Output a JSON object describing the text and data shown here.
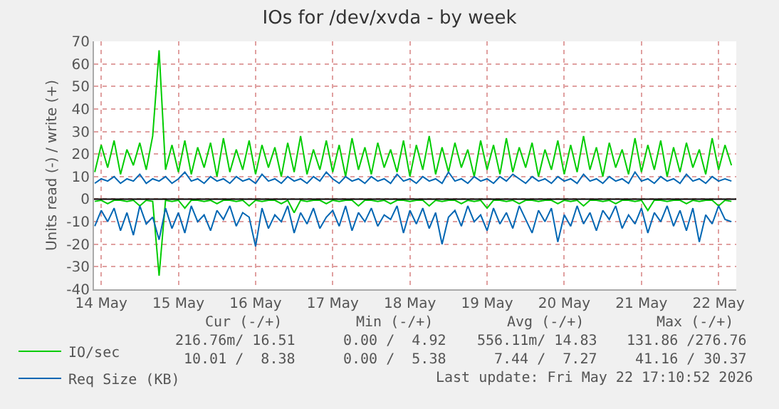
{
  "chart_data": {
    "type": "line",
    "title": "IOs for /dev/xvda - by week",
    "ylabel": "Units read (-) / write (+)",
    "x": [
      "2026-05-14T10:00",
      "2026-05-14T12:00",
      "2026-05-14T14:00",
      "2026-05-14T16:00",
      "2026-05-14T18:00",
      "2026-05-14T20:00",
      "2026-05-14T22:00",
      "2026-05-15T00:00",
      "2026-05-15T02:00",
      "2026-05-15T04:00",
      "2026-05-15T06:00",
      "2026-05-15T08:00",
      "2026-05-15T10:00",
      "2026-05-15T12:00",
      "2026-05-15T14:00",
      "2026-05-15T16:00",
      "2026-05-15T18:00",
      "2026-05-15T20:00",
      "2026-05-15T22:00",
      "2026-05-16T00:00",
      "2026-05-16T02:00",
      "2026-05-16T04:00",
      "2026-05-16T06:00",
      "2026-05-16T08:00",
      "2026-05-16T10:00",
      "2026-05-16T12:00",
      "2026-05-16T14:00",
      "2026-05-16T16:00",
      "2026-05-16T18:00",
      "2026-05-16T20:00",
      "2026-05-16T22:00",
      "2026-05-17T00:00",
      "2026-05-17T02:00",
      "2026-05-17T04:00",
      "2026-05-17T06:00",
      "2026-05-17T08:00",
      "2026-05-17T10:00",
      "2026-05-17T12:00",
      "2026-05-17T14:00",
      "2026-05-17T16:00",
      "2026-05-17T18:00",
      "2026-05-17T20:00",
      "2026-05-17T22:00",
      "2026-05-18T00:00",
      "2026-05-18T02:00",
      "2026-05-18T04:00",
      "2026-05-18T06:00",
      "2026-05-18T08:00",
      "2026-05-18T10:00",
      "2026-05-18T12:00",
      "2026-05-18T14:00",
      "2026-05-18T16:00",
      "2026-05-18T18:00",
      "2026-05-18T20:00",
      "2026-05-18T22:00",
      "2026-05-19T00:00",
      "2026-05-19T02:00",
      "2026-05-19T04:00",
      "2026-05-19T06:00",
      "2026-05-19T08:00",
      "2026-05-19T10:00",
      "2026-05-19T12:00",
      "2026-05-19T14:00",
      "2026-05-19T16:00",
      "2026-05-19T18:00",
      "2026-05-19T20:00",
      "2026-05-19T22:00",
      "2026-05-20T00:00",
      "2026-05-20T02:00",
      "2026-05-20T04:00",
      "2026-05-20T06:00",
      "2026-05-20T08:00",
      "2026-05-20T10:00",
      "2026-05-20T12:00",
      "2026-05-20T14:00",
      "2026-05-20T16:00",
      "2026-05-20T18:00",
      "2026-05-20T20:00",
      "2026-05-20T22:00",
      "2026-05-21T00:00",
      "2026-05-21T02:00",
      "2026-05-21T04:00",
      "2026-05-21T06:00",
      "2026-05-21T08:00",
      "2026-05-21T10:00",
      "2026-05-21T12:00",
      "2026-05-21T14:00",
      "2026-05-21T16:00",
      "2026-05-21T18:00",
      "2026-05-21T20:00",
      "2026-05-21T22:00",
      "2026-05-22T00:00",
      "2026-05-22T02:00",
      "2026-05-22T04:00",
      "2026-05-22T06:00",
      "2026-05-22T08:00",
      "2026-05-22T10:00",
      "2026-05-22T12:00",
      "2026-05-22T14:00",
      "2026-05-22T16:00"
    ],
    "series": [
      {
        "name": "IO/sec",
        "color": "#00cc00",
        "values": [
          12,
          24,
          14,
          26,
          11,
          22,
          15,
          25,
          13,
          28,
          66,
          13,
          24,
          12,
          26,
          11,
          23,
          14,
          25,
          10,
          27,
          12,
          22,
          13,
          26,
          11,
          24,
          14,
          23,
          10,
          25,
          12,
          28,
          11,
          22,
          13,
          26,
          12,
          24,
          10,
          27,
          13,
          23,
          11,
          25,
          14,
          22,
          12,
          26,
          10,
          24,
          13,
          28,
          11,
          23,
          12,
          25,
          14,
          22,
          10,
          26,
          13,
          24,
          11,
          27,
          12,
          23,
          14,
          25,
          10,
          22,
          13,
          26,
          11,
          24,
          12,
          28,
          13,
          23,
          10,
          25,
          14,
          22,
          11,
          27,
          12,
          24,
          13,
          26,
          10,
          23,
          12,
          25,
          14,
          22,
          11,
          27,
          13,
          24,
          15
        ]
      },
      {
        "color": "#00cc00",
        "values": [
          -1,
          -0.5,
          -2,
          -0.5,
          -0.5,
          -1,
          -0.5,
          -3,
          -0.5,
          -1,
          -34,
          -0.5,
          -1,
          -0.5,
          -4,
          -0.5,
          -0.5,
          -1,
          -0.5,
          -2,
          -0.5,
          -0.5,
          -1,
          -0.5,
          -3,
          -0.5,
          -1,
          -0.5,
          -0.5,
          -2,
          -0.5,
          -6,
          -0.5,
          -1,
          -0.5,
          -0.5,
          -2,
          -0.5,
          -1,
          -0.5,
          -0.5,
          -3,
          -0.5,
          -0.5,
          -1,
          -0.5,
          -2,
          -0.5,
          -0.5,
          -1,
          -0.5,
          -0.5,
          -3,
          -0.5,
          -1,
          -0.5,
          -0.5,
          -2,
          -0.5,
          -1,
          -0.5,
          -4,
          -0.5,
          -0.5,
          -1,
          -0.5,
          -2,
          -0.5,
          -0.5,
          -1,
          -0.5,
          -0.5,
          -2,
          -0.5,
          -1,
          -0.5,
          -3,
          -0.5,
          -0.5,
          -1,
          -0.5,
          -2,
          -0.5,
          -0.5,
          -1,
          -0.5,
          -5,
          -0.5,
          -0.5,
          -1,
          -0.5,
          -0.5,
          -2,
          -0.5,
          -1,
          -0.5,
          -0.5,
          -3,
          -0.5,
          -1
        ]
      },
      {
        "name": "Req Size (KB)",
        "color": "#0066b3",
        "values": [
          7,
          9,
          8,
          10,
          7,
          9,
          8,
          11,
          7,
          9,
          8,
          10,
          7,
          9,
          12,
          8,
          9,
          7,
          10,
          8,
          9,
          7,
          10,
          8,
          9,
          7,
          11,
          8,
          9,
          7,
          10,
          8,
          9,
          7,
          10,
          8,
          12,
          9,
          7,
          10,
          8,
          9,
          7,
          10,
          8,
          9,
          7,
          11,
          8,
          9,
          7,
          10,
          8,
          9,
          7,
          12,
          8,
          9,
          7,
          10,
          8,
          9,
          7,
          10,
          8,
          11,
          9,
          7,
          10,
          8,
          9,
          7,
          10,
          8,
          9,
          7,
          11,
          8,
          9,
          7,
          10,
          8,
          9,
          7,
          12,
          8,
          9,
          7,
          10,
          8,
          9,
          7,
          11,
          8,
          9,
          7,
          10,
          8,
          9,
          8
        ]
      },
      {
        "color": "#0066b3",
        "values": [
          -12,
          -5,
          -10,
          -4,
          -14,
          -6,
          -16,
          -3,
          -11,
          -8,
          -18,
          -4,
          -13,
          -6,
          -15,
          -3,
          -10,
          -7,
          -14,
          -5,
          -9,
          -3,
          -12,
          -6,
          -8,
          -21,
          -4,
          -13,
          -7,
          -10,
          -3,
          -15,
          -6,
          -11,
          -4,
          -13,
          -8,
          -5,
          -12,
          -3,
          -14,
          -6,
          -10,
          -4,
          -12,
          -7,
          -9,
          -3,
          -15,
          -5,
          -11,
          -4,
          -13,
          -6,
          -20,
          -8,
          -5,
          -12,
          -3,
          -10,
          -7,
          -14,
          -4,
          -11,
          -6,
          -13,
          -3,
          -9,
          -15,
          -5,
          -10,
          -4,
          -19,
          -7,
          -12,
          -3,
          -11,
          -6,
          -14,
          -5,
          -9,
          -3,
          -13,
          -7,
          -11,
          -4,
          -15,
          -6,
          -10,
          -3,
          -12,
          -5,
          -14,
          -4,
          -19,
          -7,
          -11,
          -3,
          -9,
          -10
        ]
      }
    ],
    "xlim": [
      "2026-05-14T09:45",
      "2026-05-22T17:30"
    ],
    "xticks": [
      {
        "value": "2026-05-14T12:00",
        "label": "14 May"
      },
      {
        "value": "2026-05-15T12:00",
        "label": "15 May"
      },
      {
        "value": "2026-05-16T12:00",
        "label": "16 May"
      },
      {
        "value": "2026-05-17T12:00",
        "label": "17 May"
      },
      {
        "value": "2026-05-18T12:00",
        "label": "18 May"
      },
      {
        "value": "2026-05-19T12:00",
        "label": "19 May"
      },
      {
        "value": "2026-05-20T12:00",
        "label": "20 May"
      },
      {
        "value": "2026-05-21T12:00",
        "label": "21 May"
      },
      {
        "value": "2026-05-22T12:00",
        "label": "22 May"
      }
    ],
    "ylim": [
      -40,
      70
    ],
    "yticks": [
      -40,
      -30,
      -20,
      -10,
      0,
      10,
      20,
      30,
      40,
      50,
      60,
      70
    ],
    "ref_lines": [
      {
        "axis": "y",
        "value": 0,
        "color": "#000000"
      }
    ],
    "grid": true,
    "legend": "bottom",
    "marker": "none",
    "line_style": "solid",
    "annotations": [
      "Cur (-/+)",
      "Min (-/+)",
      "Avg (-/+)",
      "Max (-/+)",
      "216.76m/ 16.51",
      "0.00 /  4.92",
      "556.11m/ 14.83",
      "131.86 /276.76",
      "10.01 /  8.38",
      "0.00 /  5.38",
      "7.44 /  7.27",
      "41.16 / 30.37",
      "Last update: Fri May 22 17:10:52 2026"
    ]
  }
}
